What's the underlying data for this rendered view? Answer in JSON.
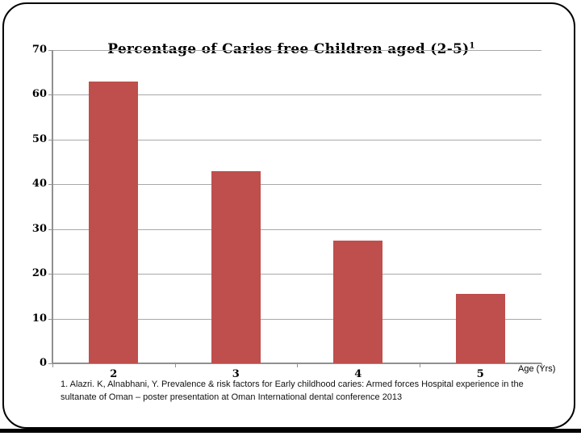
{
  "chart_data": {
    "type": "bar",
    "title": "Percentage of Caries free Children aged (2-5)",
    "title_superscript": "1",
    "categories": [
      "2",
      "3",
      "4",
      "5"
    ],
    "values": [
      63,
      43,
      27.5,
      15.5
    ],
    "xlabel": "Age (Yrs)",
    "ylabel": "",
    "ylim": [
      0,
      70
    ],
    "yticks": [
      0,
      10,
      20,
      30,
      40,
      50,
      60,
      70
    ],
    "grid": true,
    "legend": false,
    "bar_color": "#BE4F4C",
    "gridline_color": "#A8A8A8",
    "axis_color": "#909090",
    "text_color": "#000000"
  },
  "footnote": "1. Alazri. K, Alnabhani, Y. Prevalence & risk factors for Early childhood caries: Armed forces Hospital experience in the sultanate of Oman – poster presentation at Oman International dental conference 2013"
}
